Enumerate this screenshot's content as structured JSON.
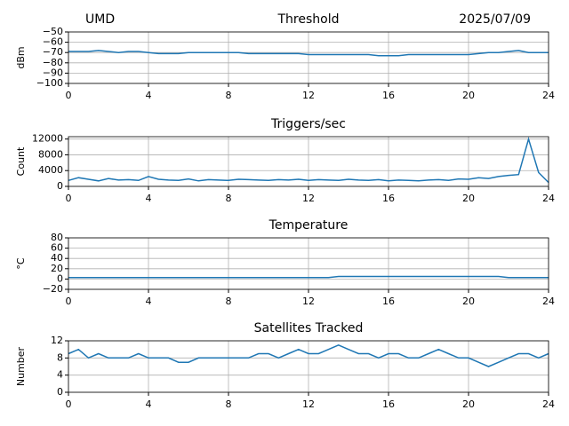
{
  "chart_data": [
    {
      "type": "line",
      "title": "Threshold",
      "left_title": "UMD",
      "right_title": "2025/07/09",
      "ylabel": "dBm",
      "color": "#1f77b4",
      "grid": true,
      "xlim": [
        0,
        24
      ],
      "xticks": [
        0,
        4,
        8,
        12,
        16,
        20,
        24
      ],
      "ylim": [
        -100,
        -50
      ],
      "yticks": [
        {
          "value": -100,
          "label": "−100"
        },
        {
          "value": -90,
          "label": "−90"
        },
        {
          "value": -80,
          "label": "−80"
        },
        {
          "value": -70,
          "label": "−70"
        },
        {
          "value": -60,
          "label": "−60"
        },
        {
          "value": -50,
          "label": "−50"
        }
      ],
      "x": [
        0,
        0.5,
        1,
        1.5,
        2,
        2.5,
        3,
        3.5,
        4,
        4.5,
        5,
        5.5,
        6,
        6.5,
        7,
        7.5,
        8,
        8.5,
        9,
        9.5,
        10,
        10.5,
        11,
        11.5,
        12,
        12.5,
        13,
        13.5,
        14,
        14.5,
        15,
        15.5,
        16,
        16.5,
        17,
        17.5,
        18,
        18.5,
        19,
        19.5,
        20,
        20.5,
        21,
        21.5,
        22,
        22.5,
        23,
        23.5,
        24
      ],
      "values": [
        -69,
        -69,
        -69,
        -68,
        -69,
        -70,
        -69,
        -69,
        -70,
        -71,
        -71,
        -71,
        -70,
        -70,
        -70,
        -70,
        -70,
        -70,
        -71,
        -71,
        -71,
        -71,
        -71,
        -71,
        -72,
        -72,
        -72,
        -72,
        -72,
        -72,
        -72,
        -73,
        -73,
        -73,
        -72,
        -72,
        -72,
        -72,
        -72,
        -72,
        -72,
        -71,
        -70,
        -70,
        -69,
        -68,
        -70,
        -70,
        -70
      ]
    },
    {
      "type": "line",
      "title": "Triggers/sec",
      "ylabel": "Count",
      "color": "#1f77b4",
      "grid": true,
      "xlim": [
        0,
        24
      ],
      "xticks": [
        0,
        4,
        8,
        12,
        16,
        20,
        24
      ],
      "ylim": [
        0,
        12600
      ],
      "yticks": [
        0,
        4000,
        8000,
        12000
      ],
      "x": [
        0,
        0.5,
        1,
        1.5,
        2,
        2.5,
        3,
        3.5,
        4,
        4.5,
        5,
        5.5,
        6,
        6.5,
        7,
        7.5,
        8,
        8.5,
        9,
        9.5,
        10,
        10.5,
        11,
        11.5,
        12,
        12.5,
        13,
        13.5,
        14,
        14.5,
        15,
        15.5,
        16,
        16.5,
        17,
        17.5,
        18,
        18.5,
        19,
        19.5,
        20,
        20.5,
        21,
        21.5,
        22,
        22.5,
        23,
        23.5,
        24
      ],
      "values": [
        1500,
        2200,
        1800,
        1400,
        2000,
        1600,
        1700,
        1500,
        2500,
        1800,
        1600,
        1500,
        1900,
        1400,
        1700,
        1600,
        1500,
        1800,
        1700,
        1600,
        1500,
        1700,
        1600,
        1800,
        1500,
        1700,
        1600,
        1500,
        1800,
        1600,
        1500,
        1700,
        1400,
        1600,
        1500,
        1400,
        1600,
        1700,
        1500,
        1900,
        1800,
        2200,
        2000,
        2500,
        2800,
        3000,
        12000,
        3500,
        1000
      ]
    },
    {
      "type": "line",
      "title": "Temperature",
      "ylabel": "°C",
      "color": "#1f77b4",
      "grid": true,
      "xlim": [
        0,
        24
      ],
      "xticks": [
        0,
        4,
        8,
        12,
        16,
        20,
        24
      ],
      "ylim": [
        -20,
        80
      ],
      "yticks": [
        {
          "value": -20,
          "label": "−20"
        },
        0,
        20,
        40,
        60,
        80
      ],
      "x": [
        0,
        0.5,
        1,
        1.5,
        2,
        2.5,
        3,
        3.5,
        4,
        4.5,
        5,
        5.5,
        6,
        6.5,
        7,
        7.5,
        8,
        8.5,
        9,
        9.5,
        10,
        10.5,
        11,
        11.5,
        12,
        12.5,
        13,
        13.5,
        14,
        14.5,
        15,
        15.5,
        16,
        16.5,
        17,
        17.5,
        18,
        18.5,
        19,
        19.5,
        20,
        20.5,
        21,
        21.5,
        22,
        22.5,
        23,
        23.5,
        24
      ],
      "values": [
        3,
        3,
        3,
        3,
        3,
        3,
        3,
        3,
        3,
        3,
        3,
        3,
        3,
        3,
        3,
        3,
        3,
        3,
        3,
        3,
        3,
        3,
        3,
        3,
        3,
        3,
        3,
        5,
        5,
        5,
        5,
        5,
        5,
        5,
        5,
        5,
        5,
        5,
        5,
        5,
        5,
        5,
        5,
        5,
        3,
        3,
        3,
        3,
        3
      ]
    },
    {
      "type": "line",
      "title": "Satellites Tracked",
      "ylabel": "Number",
      "color": "#1f77b4",
      "grid": true,
      "xlim": [
        0,
        24
      ],
      "xticks": [
        0,
        4,
        8,
        12,
        16,
        20,
        24
      ],
      "ylim": [
        0,
        12
      ],
      "yticks": [
        0,
        4,
        8,
        12
      ],
      "x": [
        0,
        0.5,
        1,
        1.5,
        2,
        2.5,
        3,
        3.5,
        4,
        4.5,
        5,
        5.5,
        6,
        6.5,
        7,
        7.5,
        8,
        8.5,
        9,
        9.5,
        10,
        10.5,
        11,
        11.5,
        12,
        12.5,
        13,
        13.5,
        14,
        14.5,
        15,
        15.5,
        16,
        16.5,
        17,
        17.5,
        18,
        18.5,
        19,
        19.5,
        20,
        20.5,
        21,
        21.5,
        22,
        22.5,
        23,
        23.5,
        24
      ],
      "values": [
        9,
        10,
        8,
        9,
        8,
        8,
        8,
        9,
        8,
        8,
        8,
        7,
        7,
        8,
        8,
        8,
        8,
        8,
        8,
        9,
        9,
        8,
        9,
        10,
        9,
        9,
        10,
        11,
        10,
        9,
        9,
        8,
        9,
        9,
        8,
        8,
        9,
        10,
        9,
        8,
        8,
        7,
        6,
        7,
        8,
        9,
        9,
        8,
        9
      ]
    }
  ]
}
